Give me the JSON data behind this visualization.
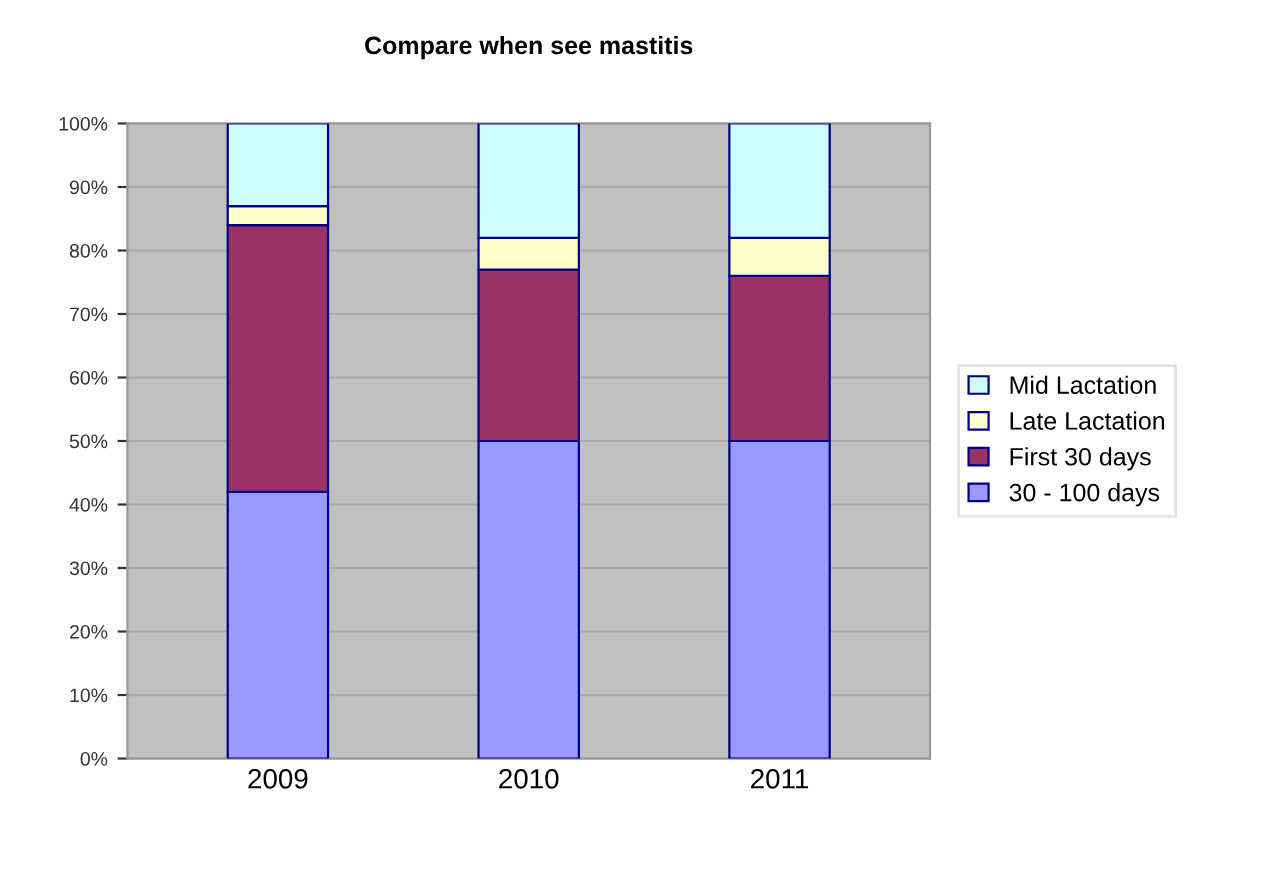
{
  "chart_data": {
    "type": "bar",
    "title": "Compare when see mastitis",
    "stacked": true,
    "categories": [
      "2009",
      "2010",
      "2011"
    ],
    "series": [
      {
        "name": "30 - 100 days",
        "color": "#9999ff",
        "values": [
          42,
          50,
          50
        ]
      },
      {
        "name": "First 30 days",
        "color": "#993366",
        "values": [
          42,
          27,
          26
        ]
      },
      {
        "name": "Late Lactation",
        "color": "#ffffcc",
        "values": [
          3,
          5,
          6
        ]
      },
      {
        "name": "Mid Lactation",
        "color": "#ccffff",
        "values": [
          13,
          18,
          18
        ]
      }
    ],
    "ylim": [
      0,
      100
    ],
    "yticks": [
      {
        "value": 0,
        "label": "0%"
      },
      {
        "value": 10,
        "label": "10%"
      },
      {
        "value": 20,
        "label": "20%"
      },
      {
        "value": 30,
        "label": "30%"
      },
      {
        "value": 40,
        "label": "40%"
      },
      {
        "value": 50,
        "label": "50%"
      },
      {
        "value": 60,
        "label": "60%"
      },
      {
        "value": 70,
        "label": "70%"
      },
      {
        "value": 80,
        "label": "80%"
      },
      {
        "value": 90,
        "label": "90%"
      },
      {
        "value": 100,
        "label": "100%"
      }
    ],
    "grid": "y",
    "legend": "right"
  }
}
